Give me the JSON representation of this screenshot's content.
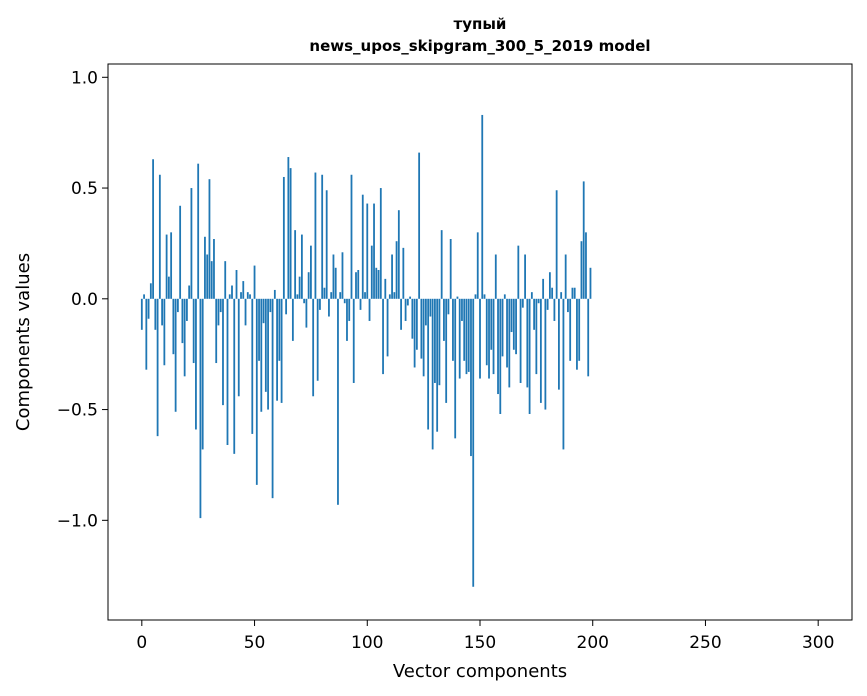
{
  "chart_data": {
    "type": "bar",
    "title_lines": [
      "тупый",
      "news_upos_skipgram_300_5_2019 model"
    ],
    "xlabel": "Vector components",
    "ylabel": "Components values",
    "xlim": [
      -15,
      315
    ],
    "ylim": [
      -1.45,
      1.06
    ],
    "x_ticks": [
      0,
      50,
      100,
      150,
      200,
      250,
      300
    ],
    "x_tick_labels": [
      "0",
      "50",
      "100",
      "150",
      "200",
      "250",
      "300"
    ],
    "y_ticks": [
      1.0,
      0.5,
      0.0,
      -0.5,
      -1.0
    ],
    "y_tick_labels": [
      "1.0",
      "0.5",
      "0.0",
      "−0.5",
      "−1.0"
    ],
    "bar_color": "#1f77b4",
    "grid": false,
    "legend": false,
    "series": [
      {
        "x_start": 0,
        "values": [
          -0.14,
          0.02,
          -0.32,
          -0.09,
          0.07,
          0.63,
          -0.14,
          -0.62,
          0.56,
          -0.12,
          -0.3,
          0.29,
          0.1,
          0.3,
          -0.25,
          -0.51,
          -0.06,
          0.42,
          -0.2,
          -0.35,
          -0.1,
          0.06,
          0.5,
          -0.29,
          -0.59,
          0.61,
          -0.99,
          -0.68,
          0.28,
          0.2,
          0.54,
          0.17,
          0.27,
          -0.29,
          -0.12,
          -0.06,
          -0.48,
          0.17,
          -0.66,
          0.02,
          0.06,
          -0.7,
          0.13,
          -0.44,
          0.03,
          0.08,
          -0.12,
          0.03,
          0.02,
          -0.61,
          0.15,
          -0.84,
          -0.28,
          -0.51,
          -0.11,
          -0.42,
          -0.5,
          -0.06,
          -0.9,
          0.04,
          -0.46,
          -0.28,
          -0.47,
          0.55,
          -0.07,
          0.64,
          0.59,
          -0.19,
          0.31,
          0.02,
          0.1,
          0.29,
          -0.02,
          -0.13,
          0.12,
          0.24,
          -0.44,
          0.57,
          -0.37,
          -0.05,
          0.56,
          0.05,
          0.49,
          -0.08,
          0.03,
          0.2,
          0.14,
          -0.93,
          0.03,
          0.21,
          -0.02,
          -0.19,
          -0.1,
          0.56,
          -0.38,
          0.12,
          0.13,
          -0.05,
          0.47,
          0.03,
          0.43,
          -0.1,
          0.24,
          0.43,
          0.14,
          0.13,
          0.5,
          -0.34,
          0.09,
          -0.26,
          0.02,
          0.2,
          0.03,
          0.26,
          0.4,
          -0.14,
          0.23,
          -0.1,
          -0.03,
          0.01,
          -0.18,
          -0.31,
          -0.23,
          0.66,
          -0.27,
          -0.35,
          -0.12,
          -0.59,
          -0.08,
          -0.68,
          -0.38,
          -0.6,
          -0.39,
          0.31,
          -0.19,
          -0.47,
          -0.07,
          0.27,
          -0.28,
          -0.63,
          0.01,
          -0.36,
          -0.1,
          -0.28,
          -0.34,
          -0.33,
          -0.71,
          -1.3,
          0.02,
          0.3,
          -0.36,
          0.83,
          0.02,
          -0.3,
          -0.36,
          -0.23,
          -0.34,
          0.2,
          -0.43,
          -0.52,
          -0.26,
          0.02,
          -0.31,
          -0.4,
          -0.15,
          -0.23,
          -0.25,
          0.24,
          -0.38,
          -0.04,
          0.2,
          -0.4,
          -0.52,
          0.03,
          -0.14,
          -0.34,
          -0.02,
          -0.47,
          0.09,
          -0.5,
          -0.05,
          0.12,
          0.05,
          -0.1,
          0.49,
          -0.41,
          0.03,
          -0.68,
          0.2,
          -0.06,
          -0.28,
          0.05,
          0.05,
          -0.32,
          -0.28,
          0.26,
          0.53,
          0.3,
          -0.35,
          0.14
        ]
      }
    ]
  }
}
